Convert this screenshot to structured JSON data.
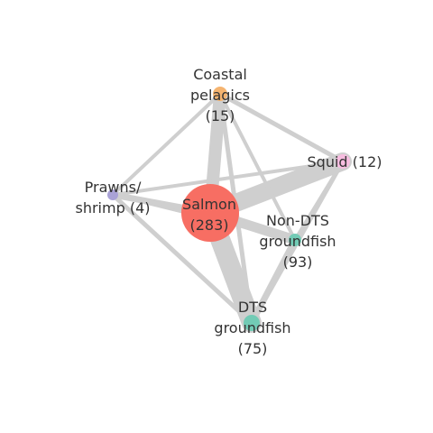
{
  "diagram": {
    "type": "network",
    "nodes": [
      {
        "id": "coastal",
        "label_lines": [
          "Coastal",
          "pelagics",
          "(15)"
        ],
        "count": 15,
        "color": "#f5b470"
      },
      {
        "id": "squid",
        "label_lines": [
          "Squid (12)"
        ],
        "count": 12,
        "color": "#f7bde0"
      },
      {
        "id": "prawns",
        "label_lines": [
          "Prawns/",
          "shrimp (4)"
        ],
        "count": 4,
        "color": "#a9a2d6"
      },
      {
        "id": "salmon",
        "label_lines": [
          "Salmon",
          "(283)"
        ],
        "count": 283,
        "color": "#f76e63"
      },
      {
        "id": "nondts",
        "label_lines": [
          "Non-DTS",
          "groundfish",
          "(93)"
        ],
        "count": 93,
        "color": "#72cbb5"
      },
      {
        "id": "dts",
        "label_lines": [
          "DTS",
          "groundfish",
          "(75)"
        ],
        "count": 75,
        "color": "#72cbb5"
      }
    ],
    "edge_color": "#cfcfcf",
    "edges": [
      {
        "source": "salmon",
        "target": "dts",
        "weight": 22
      },
      {
        "source": "salmon",
        "target": "squid",
        "weight": 20
      },
      {
        "source": "salmon",
        "target": "coastal",
        "weight": 14
      },
      {
        "source": "salmon",
        "target": "nondts",
        "weight": 11
      },
      {
        "source": "salmon",
        "target": "prawns",
        "weight": 7
      },
      {
        "source": "dts",
        "target": "nondts",
        "weight": 7
      },
      {
        "source": "dts",
        "target": "coastal",
        "weight": 5
      },
      {
        "source": "dts",
        "target": "prawns",
        "weight": 5
      },
      {
        "source": "dts",
        "target": "squid",
        "weight": 5
      },
      {
        "source": "coastal",
        "target": "squid",
        "weight": 5
      },
      {
        "source": "coastal",
        "target": "nondts",
        "weight": 4
      },
      {
        "source": "coastal",
        "target": "prawns",
        "weight": 4
      },
      {
        "source": "nondts",
        "target": "squid",
        "weight": 4
      },
      {
        "source": "prawns",
        "target": "squid",
        "weight": 4
      },
      {
        "source": "prawns",
        "target": "nondts",
        "weight": 3
      }
    ]
  }
}
